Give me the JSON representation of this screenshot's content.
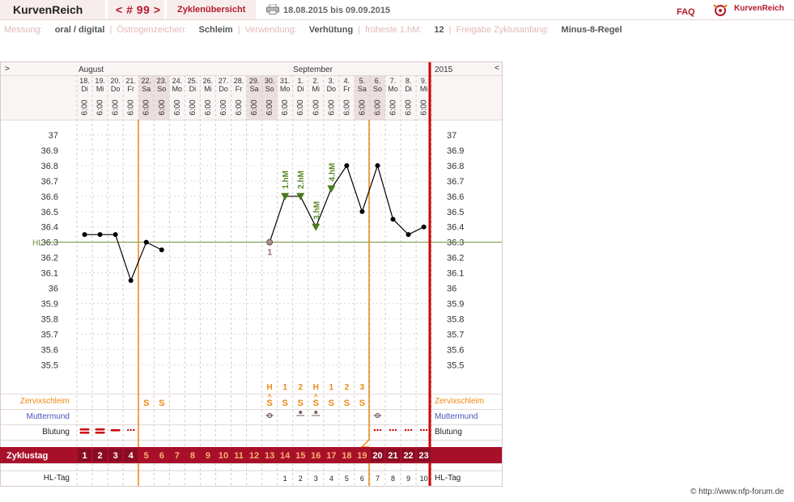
{
  "header": {
    "app_title": "KurvenReich",
    "cycle_nav": "< # 99 >",
    "cycle_overview": "Zyklenübersicht",
    "date_range": "18.08.2015 bis 09.09.2015",
    "faq": "FAQ",
    "logo_text": "KurvenReich"
  },
  "settings": [
    {
      "label": "Messung:",
      "value": "oral / digital"
    },
    {
      "label": "Östrogenzeichen:",
      "value": "Schleim"
    },
    {
      "label": "Verwendung:",
      "value": "Verhütung"
    },
    {
      "label": "früheste 1.hM:",
      "value": "12"
    },
    {
      "label": "Freigabe Zyklusanfang:",
      "value": "Minus-8-Regel"
    }
  ],
  "chart": {
    "left_arrow": ">",
    "right_arrow": "<",
    "month_1": "August",
    "month_2": "September",
    "year": "2015",
    "days": [
      {
        "day": "18.",
        "dow": "Di"
      },
      {
        "day": "19.",
        "dow": "Mi"
      },
      {
        "day": "20.",
        "dow": "Do"
      },
      {
        "day": "21.",
        "dow": "Fr"
      },
      {
        "day": "22.",
        "dow": "Sa"
      },
      {
        "day": "23.",
        "dow": "So"
      },
      {
        "day": "24.",
        "dow": "Mo"
      },
      {
        "day": "25.",
        "dow": "Di"
      },
      {
        "day": "26.",
        "dow": "Mi"
      },
      {
        "day": "27.",
        "dow": "Do"
      },
      {
        "day": "28.",
        "dow": "Fr"
      },
      {
        "day": "29.",
        "dow": "Sa"
      },
      {
        "day": "30.",
        "dow": "So"
      },
      {
        "day": "31.",
        "dow": "Mo"
      },
      {
        "day": "1.",
        "dow": "Di"
      },
      {
        "day": "2.",
        "dow": "Mi"
      },
      {
        "day": "3.",
        "dow": "Do"
      },
      {
        "day": "4.",
        "dow": "Fr"
      },
      {
        "day": "5.",
        "dow": "Sa"
      },
      {
        "day": "6.",
        "dow": "So"
      },
      {
        "day": "7.",
        "dow": "Mo"
      },
      {
        "day": "8.",
        "dow": "Di"
      },
      {
        "day": "9.",
        "dow": "Mi"
      }
    ],
    "measure_time": "6:00",
    "weekend_indices": [
      4,
      5,
      11,
      12,
      18,
      19
    ],
    "y_ticks": [
      "37",
      "36.9",
      "36.8",
      "36.7",
      "36.6",
      "36.5",
      "36.4",
      "36.3",
      "36.2",
      "36.1",
      "36",
      "35.9",
      "35.8",
      "35.7",
      "35.6",
      "35.5"
    ],
    "hl_label": "HL",
    "hl_value": 36.3,
    "marker_1_label": "1",
    "row_labels": {
      "cervix": "Zervixschleim",
      "cervix_right": "Zervixschleim",
      "muttermund": "Muttermund",
      "muttermund_right": "Muttermund",
      "bleeding": "Blutung",
      "bleeding_right": "Blutung",
      "cycleday": "Zyklustag",
      "hltag": "HL-Tag",
      "hltag_right": "HL-Tag"
    },
    "cycle_days": [
      "1",
      "2",
      "3",
      "4",
      "5",
      "6",
      "7",
      "8",
      "9",
      "10",
      "11",
      "12",
      "13",
      "14",
      "15",
      "16",
      "17",
      "18",
      "19",
      "20",
      "21",
      "22",
      "23"
    ],
    "hl_days": [
      "",
      "",
      "",
      "",
      "",
      "",
      "",
      "",
      "",
      "",
      "",
      "",
      "",
      "1",
      "2",
      "3",
      "4",
      "5",
      "6",
      "7",
      "8",
      "9",
      "10"
    ],
    "cervix": [
      "",
      "",
      "",
      "",
      "S",
      "S",
      "",
      "",
      "",
      "",
      "",
      "",
      "S",
      "S",
      "S",
      "S",
      "S",
      "S",
      "S",
      "",
      "",
      "",
      ""
    ],
    "peak_labels": [
      "",
      "",
      "",
      "",
      "",
      "",
      "",
      "",
      "",
      "",
      "",
      "",
      "H",
      "1",
      "2",
      "H",
      "1",
      "2",
      "3",
      "",
      "",
      "",
      ""
    ],
    "mucus_peak_marks": [
      "",
      "",
      "",
      "",
      "",
      "",
      "",
      "",
      "",
      "",
      "",
      "",
      "^",
      "",
      "",
      "^",
      "",
      "",
      "",
      "",
      "",
      "",
      ""
    ],
    "hm_labels": {
      "13": "1.hM",
      "14": "2.hM",
      "15": "3.hM",
      "16": "4.hM"
    },
    "copyright": "© http://www.nfp-forum.de"
  },
  "chart_data": {
    "type": "line",
    "x": [
      "18.08",
      "19.08",
      "20.08",
      "21.08",
      "22.08",
      "23.08",
      "24.08",
      "25.08",
      "26.08",
      "27.08",
      "28.08",
      "29.08",
      "30.08",
      "31.08",
      "01.09",
      "02.09",
      "03.09",
      "04.09",
      "05.09",
      "06.09",
      "07.09",
      "08.09",
      "09.09"
    ],
    "series": [
      {
        "values": [
          36.35,
          36.35,
          36.35,
          36.05,
          36.3,
          36.25,
          null,
          null,
          null,
          null,
          null,
          null,
          36.3,
          36.6,
          36.6,
          36.4,
          36.65,
          36.8,
          36.5,
          36.8,
          36.45,
          36.35,
          36.4
        ]
      }
    ],
    "ylim": [
      35.45,
      37.05
    ],
    "y_ticks": [
      35.5,
      35.6,
      35.7,
      35.8,
      35.9,
      36,
      36.1,
      36.2,
      36.3,
      36.4,
      36.5,
      36.6,
      36.7,
      36.8,
      36.9,
      37
    ],
    "coverline": 36.3,
    "grid": true,
    "colors": {
      "line": "#000000",
      "hl_line": "#6b8e3d",
      "hm_marker": "#5a8a2a",
      "coverline_marker": "#a07070",
      "period_line": "#ee8811",
      "cycle_end_line": "#cc0000",
      "cycleday_bar": "#a8102a"
    }
  }
}
